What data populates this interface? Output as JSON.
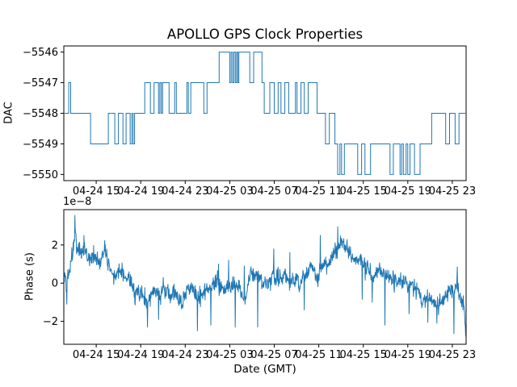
{
  "figure": {
    "title": "APOLLO GPS Clock Properties",
    "background_color": "#ffffff",
    "line_color": "#1f77b4",
    "text_color": "#000000"
  },
  "chart_data": [
    {
      "type": "line",
      "subplot": "top",
      "line_style": "steps-post",
      "ylabel": "DAC",
      "x_unit": "hours since 04-24 00:00 (GMT)",
      "xlim": [
        12.09,
        48.24
      ],
      "ylim": [
        -5550.2,
        -5545.8
      ],
      "grid": false,
      "xticks": {
        "positions": [
          15,
          19,
          23,
          27,
          31,
          35,
          39,
          43,
          47
        ],
        "labels": [
          "04-24 15",
          "04-24 19",
          "04-24 23",
          "04-25 03",
          "04-25 07",
          "04-25 11",
          "04-25 15",
          "04-25 19",
          "04-25 23"
        ]
      },
      "yticks": {
        "positions": [
          -5546,
          -5547,
          -5548,
          -5549,
          -5550
        ],
        "labels": [
          "−5546",
          "−5547",
          "−5548",
          "−5549",
          "−5550"
        ]
      },
      "steps": [
        [
          12.09,
          -5548
        ],
        [
          12.53,
          -5547
        ],
        [
          12.71,
          -5548
        ],
        [
          14.49,
          -5549
        ],
        [
          16.09,
          -5548
        ],
        [
          16.67,
          -5549
        ],
        [
          17.0,
          -5548
        ],
        [
          17.4,
          -5549
        ],
        [
          17.69,
          -5548
        ],
        [
          18.05,
          -5549
        ],
        [
          18.2,
          -5548
        ],
        [
          18.32,
          -5549
        ],
        [
          18.45,
          -5548
        ],
        [
          19.36,
          -5547
        ],
        [
          19.87,
          -5548
        ],
        [
          20.2,
          -5547
        ],
        [
          20.6,
          -5548
        ],
        [
          20.72,
          -5547
        ],
        [
          20.85,
          -5548
        ],
        [
          20.97,
          -5547
        ],
        [
          21.55,
          -5548
        ],
        [
          22.05,
          -5547
        ],
        [
          22.2,
          -5548
        ],
        [
          23.15,
          -5547
        ],
        [
          23.28,
          -5548
        ],
        [
          23.5,
          -5547
        ],
        [
          24.67,
          -5548
        ],
        [
          24.96,
          -5547
        ],
        [
          26.05,
          -5546
        ],
        [
          27.0,
          -5547
        ],
        [
          27.12,
          -5546
        ],
        [
          27.25,
          -5547
        ],
        [
          27.37,
          -5546
        ],
        [
          27.5,
          -5547
        ],
        [
          27.62,
          -5546
        ],
        [
          27.72,
          -5547
        ],
        [
          27.82,
          -5546
        ],
        [
          28.8,
          -5547
        ],
        [
          29.15,
          -5546
        ],
        [
          29.9,
          -5547
        ],
        [
          30.1,
          -5548
        ],
        [
          30.6,
          -5547
        ],
        [
          31.0,
          -5548
        ],
        [
          31.35,
          -5547
        ],
        [
          31.6,
          -5548
        ],
        [
          31.95,
          -5547
        ],
        [
          32.3,
          -5548
        ],
        [
          32.9,
          -5547
        ],
        [
          33.05,
          -5548
        ],
        [
          33.4,
          -5547
        ],
        [
          33.7,
          -5548
        ],
        [
          34.05,
          -5547
        ],
        [
          34.85,
          -5548
        ],
        [
          35.6,
          -5549
        ],
        [
          35.95,
          -5548
        ],
        [
          36.45,
          -5549
        ],
        [
          36.7,
          -5550
        ],
        [
          36.9,
          -5549
        ],
        [
          37.05,
          -5550
        ],
        [
          37.3,
          -5549
        ],
        [
          38.5,
          -5550
        ],
        [
          38.85,
          -5549
        ],
        [
          39.15,
          -5550
        ],
        [
          39.65,
          -5549
        ],
        [
          41.4,
          -5550
        ],
        [
          41.7,
          -5549
        ],
        [
          42.3,
          -5550
        ],
        [
          42.45,
          -5549
        ],
        [
          42.6,
          -5550
        ],
        [
          42.85,
          -5549
        ],
        [
          43.0,
          -5550
        ],
        [
          43.2,
          -5549
        ],
        [
          43.6,
          -5550
        ],
        [
          44.1,
          -5549
        ],
        [
          45.15,
          -5548
        ],
        [
          46.4,
          -5549
        ],
        [
          46.75,
          -5548
        ],
        [
          47.25,
          -5549
        ],
        [
          47.6,
          -5548
        ]
      ],
      "end_hour": 48.24
    },
    {
      "type": "line",
      "subplot": "bottom",
      "ylabel": "Phase (s)",
      "xlabel": "Date (GMT)",
      "offset_label": "1e−8",
      "scale_factor": 1e-08,
      "x_unit": "hours since 04-24 00:00 (GMT)",
      "xlim": [
        12.09,
        48.24
      ],
      "ylim": [
        -3.2,
        3.85
      ],
      "grid": false,
      "xticks": {
        "positions": [
          15,
          19,
          23,
          27,
          31,
          35,
          39,
          43,
          47
        ],
        "labels": [
          "04-24 15",
          "04-24 19",
          "04-24 23",
          "04-25 03",
          "04-25 07",
          "04-25 11",
          "04-25 15",
          "04-25 19",
          "04-25 23"
        ]
      },
      "yticks": {
        "positions": [
          -2,
          0,
          2
        ],
        "labels": [
          "−2",
          "0",
          "2"
        ]
      },
      "trend": [
        [
          12.12,
          0.15
        ],
        [
          12.3,
          -0.4
        ],
        [
          12.5,
          0.3
        ],
        [
          12.8,
          0.9
        ],
        [
          13.1,
          2.0
        ],
        [
          13.35,
          1.5
        ],
        [
          13.7,
          1.6
        ],
        [
          14.0,
          1.5
        ],
        [
          14.4,
          1.3
        ],
        [
          14.9,
          1.35
        ],
        [
          15.4,
          1.2
        ],
        [
          15.8,
          1.45
        ],
        [
          16.1,
          0.9
        ],
        [
          16.5,
          0.35
        ],
        [
          16.8,
          0.55
        ],
        [
          17.2,
          0.35
        ],
        [
          17.6,
          0.15
        ],
        [
          18.0,
          -0.1
        ],
        [
          18.4,
          -0.4
        ],
        [
          18.8,
          -0.75
        ],
        [
          19.2,
          -0.95
        ],
        [
          19.7,
          -0.8
        ],
        [
          20.2,
          -0.55
        ],
        [
          20.7,
          -0.6
        ],
        [
          21.1,
          -0.4
        ],
        [
          21.6,
          -0.5
        ],
        [
          22.1,
          -0.45
        ],
        [
          22.5,
          -0.7
        ],
        [
          23.0,
          -0.5
        ],
        [
          23.4,
          -0.45
        ],
        [
          23.8,
          -0.6
        ],
        [
          24.3,
          -0.5
        ],
        [
          24.7,
          -0.35
        ],
        [
          25.2,
          -0.55
        ],
        [
          25.6,
          -0.4
        ],
        [
          26.1,
          -0.25
        ],
        [
          26.5,
          -0.5
        ],
        [
          27.0,
          -0.35
        ],
        [
          27.4,
          -0.6
        ],
        [
          27.8,
          -0.4
        ],
        [
          28.3,
          -0.15
        ],
        [
          28.8,
          0.3
        ],
        [
          29.2,
          0.45
        ],
        [
          29.7,
          0.25
        ],
        [
          30.1,
          0.05
        ],
        [
          30.6,
          -0.15
        ],
        [
          31.1,
          0.15
        ],
        [
          31.6,
          0.2
        ],
        [
          32.0,
          0.4
        ],
        [
          32.5,
          0.15
        ],
        [
          32.9,
          0.1
        ],
        [
          33.4,
          0.35
        ],
        [
          33.8,
          0.25
        ],
        [
          34.3,
          0.45
        ],
        [
          34.7,
          0.4
        ],
        [
          35.2,
          0.85
        ],
        [
          35.6,
          1.15
        ],
        [
          36.0,
          1.2
        ],
        [
          36.4,
          1.45
        ],
        [
          36.8,
          1.8
        ],
        [
          37.2,
          1.7
        ],
        [
          37.6,
          1.45
        ],
        [
          38.1,
          1.3
        ],
        [
          38.5,
          1.1
        ],
        [
          39.0,
          0.95
        ],
        [
          39.4,
          0.85
        ],
        [
          39.9,
          0.7
        ],
        [
          40.3,
          0.6
        ],
        [
          40.8,
          0.45
        ],
        [
          41.2,
          0.3
        ],
        [
          41.7,
          0.2
        ],
        [
          42.1,
          0.1
        ],
        [
          42.6,
          0.0
        ],
        [
          43.0,
          -0.1
        ],
        [
          43.5,
          -0.3
        ],
        [
          43.9,
          -0.25
        ],
        [
          44.4,
          -0.45
        ],
        [
          44.8,
          -0.6
        ],
        [
          45.3,
          -0.75
        ],
        [
          45.7,
          -0.9
        ],
        [
          46.2,
          -0.8
        ],
        [
          46.6,
          -0.7
        ],
        [
          47.1,
          -0.55
        ],
        [
          47.4,
          -0.45
        ],
        [
          47.7,
          -0.65
        ],
        [
          48.0,
          -1.0
        ],
        [
          48.2,
          -2.6
        ]
      ],
      "spikes": [
        [
          12.35,
          -1.1
        ],
        [
          13.08,
          3.55
        ],
        [
          13.9,
          2.5
        ],
        [
          19.6,
          -2.3
        ],
        [
          20.6,
          -1.9
        ],
        [
          24.1,
          -2.5
        ],
        [
          25.3,
          -2.2
        ],
        [
          26.0,
          1.0
        ],
        [
          26.9,
          1.2
        ],
        [
          27.5,
          -2.3
        ],
        [
          28.3,
          0.9
        ],
        [
          29.5,
          -2.3
        ],
        [
          30.95,
          1.8
        ],
        [
          32.4,
          1.6
        ],
        [
          33.7,
          -1.4
        ],
        [
          35.15,
          2.5
        ],
        [
          36.7,
          2.95
        ],
        [
          38.9,
          -0.85
        ],
        [
          39.8,
          -1.0
        ],
        [
          40.95,
          -2.2
        ],
        [
          43.1,
          -1.6
        ],
        [
          44.8,
          -2.05
        ],
        [
          45.6,
          -2.1
        ],
        [
          47.15,
          -2.65
        ],
        [
          47.45,
          0.85
        ],
        [
          48.2,
          -2.8
        ]
      ],
      "noise": {
        "fast_amplitude": 0.42,
        "walk_step": 0.3,
        "walk_persistence": 0.93,
        "points": 1200,
        "seed": 12345
      }
    }
  ]
}
